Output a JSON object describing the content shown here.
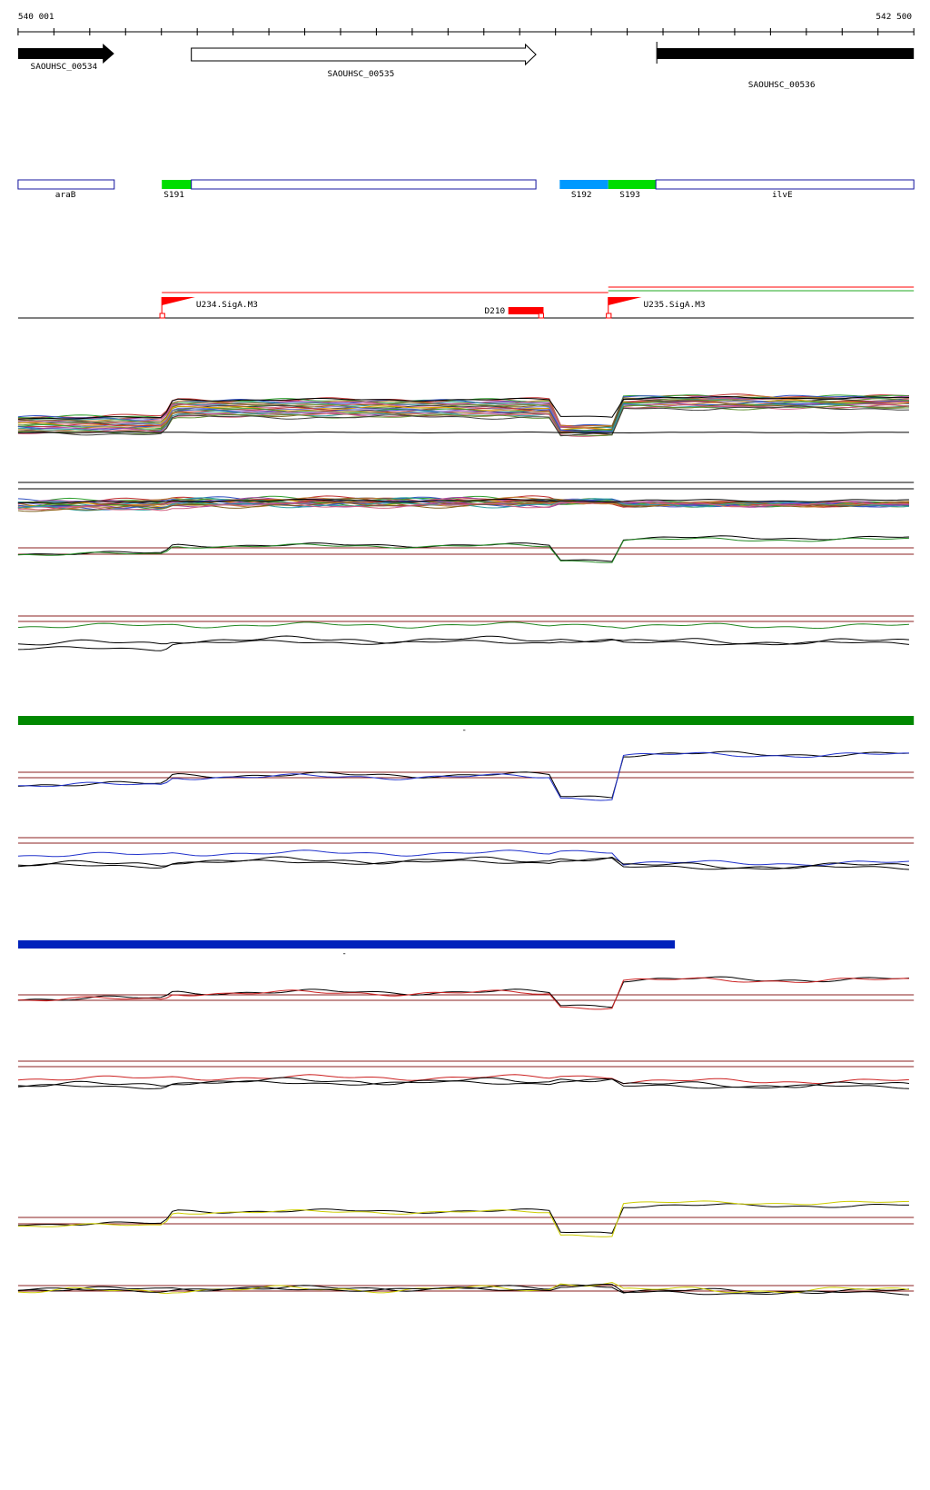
{
  "ruler": {
    "start": "540 001",
    "end": "542 500"
  },
  "genes": [
    {
      "label": "SAOUHSC_00534"
    },
    {
      "label": "SAOUHSC_00535"
    },
    {
      "label": "SAOUHSC_00536"
    }
  ],
  "segments": [
    {
      "label": "araB"
    },
    {
      "label": "S191"
    },
    {
      "label": "S192"
    },
    {
      "label": "S193"
    },
    {
      "label": "ilvE"
    }
  ],
  "features": [
    {
      "label": "U234.SigA.M3"
    },
    {
      "label": "D210"
    },
    {
      "label": "U235.SigA.M3"
    }
  ],
  "markers": [
    "-",
    "-"
  ]
}
